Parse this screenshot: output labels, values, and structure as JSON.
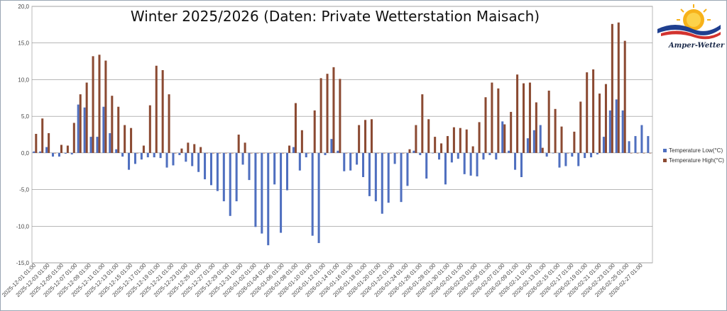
{
  "chart_data": {
    "type": "bar",
    "title": "Winter 2025/2026 (Daten: Private Wetterstation Maisach)",
    "xlabel": "",
    "ylabel": "",
    "ylim": [
      -15,
      20
    ],
    "yticks": [
      "20,0",
      "15,0",
      "10,0",
      "5,0",
      "0,0",
      "-5,0",
      "-10,0",
      "-15,0"
    ],
    "grid": true,
    "legend_position": "right",
    "colors": {
      "low": "#4f6fbf",
      "high": "#8b4a32"
    },
    "x_tick_labels": [
      "2025-12-01 01:00",
      "2025-12-03 01:00",
      "2025-12-05 01:00",
      "2025-12-07 01:00",
      "2025-12-09 01:00",
      "2025-12-11 01:00",
      "2025-12-13 01:00",
      "2025-12-15 01:00",
      "2025-12-17 01:00",
      "2025-12-19 01:00",
      "2025-12-21 01:00",
      "2025-12-23 01:00",
      "2025-12-25 01:00",
      "2025-12-27 01:00",
      "2025-12-29 01:00",
      "2025-12-31 01:00",
      "2026-01-02 01:00",
      "2026-01-04 01:00",
      "2026-01-06 01:00",
      "2026-01-08 01:00",
      "2026-01-10 01:00",
      "2026-01-12 01:00",
      "2026-01-14 01:00",
      "2026-01-16 01:00",
      "2026-01-18 01:00",
      "2026-01-20 01:00",
      "2026-01-22 01:00",
      "2026-01-24 01:00",
      "2026-01-26 01:00",
      "2026-01-28 01:00",
      "2026-01-30 01:00",
      "2026-02-01 01:00",
      "2026-02-03 01:00",
      "2026-02-05 01:00",
      "2026-02-07 01:00",
      "2026-02-09 01:00",
      "2026-02-11 01:00",
      "2026-02-13 01:00",
      "2026-02-15 01:00",
      "2026-02-17 01:00",
      "2026-02-19 01:00",
      "2026-02-21 01:00",
      "2026-02-23 01:00",
      "2026-02-25 01:00",
      "2026-02-27 01:00"
    ],
    "series": [
      {
        "name": "Temperature Low(°C)",
        "color": "#4f6fbf",
        "values": [
          0.2,
          0.2,
          0.8,
          -0.5,
          -0.5,
          -0.1,
          -0.2,
          6.6,
          6.2,
          2.2,
          2.2,
          6.3,
          2.7,
          0.5,
          -0.5,
          -2.3,
          -1.5,
          -0.9,
          -0.6,
          -0.6,
          -0.7,
          -2.0,
          -1.7,
          -0.3,
          -1.2,
          -1.8,
          -2.6,
          -3.6,
          -4.4,
          -5.2,
          -6.6,
          -8.6,
          -6.6,
          -1.6,
          -3.7,
          -10.1,
          -11.0,
          -12.6,
          -4.3,
          -10.9,
          -5.1,
          0.8,
          -2.4,
          -0.6,
          -11.3,
          -12.3,
          -0.3,
          1.9,
          0.3,
          -2.5,
          -2.4,
          -1.6,
          -3.3,
          -5.9,
          -6.6,
          -8.3,
          -6.8,
          -1.5,
          -6.7,
          -4.5,
          0.3,
          -0.3,
          -3.5,
          0.0,
          -0.9,
          -4.3,
          -1.3,
          -0.8,
          -2.9,
          -3.1,
          -3.2,
          -0.9,
          -0.3,
          -0.9,
          4.3,
          0.3,
          -2.3,
          -3.3,
          2.0,
          3.1,
          3.8,
          -0.5,
          0.0,
          -2.0,
          -1.8,
          -0.5,
          -1.8,
          -0.7,
          -0.6,
          -0.2,
          2.2,
          5.8,
          7.3,
          5.8,
          1.6,
          2.3,
          3.8,
          2.3
        ]
      },
      {
        "name": "Temperature High(°C)",
        "color": "#8b4a32",
        "values": [
          2.6,
          4.7,
          2.7,
          0.0,
          1.1,
          1.0,
          4.1,
          8.0,
          9.6,
          13.2,
          13.4,
          12.6,
          7.8,
          6.3,
          3.8,
          3.4,
          0.0,
          1.0,
          6.5,
          11.9,
          11.3,
          8.0,
          0.0,
          0.6,
          1.4,
          1.2,
          0.8,
          0.0,
          0.0,
          0.0,
          0.0,
          0.0,
          2.5,
          1.4,
          0.0,
          0.0,
          0.0,
          0.0,
          0.0,
          0.0,
          1.0,
          6.8,
          3.1,
          0.0,
          5.8,
          10.2,
          10.8,
          11.7,
          10.1,
          0.0,
          0.0,
          3.8,
          4.5,
          4.6,
          0.0,
          0.0,
          0.0,
          0.0,
          0.0,
          0.5,
          3.8,
          8.0,
          4.6,
          2.2,
          1.3,
          2.3,
          3.5,
          3.4,
          3.2,
          0.9,
          4.2,
          7.6,
          9.6,
          8.8,
          3.9,
          5.6,
          10.7,
          9.5,
          9.6,
          6.9,
          0.7,
          8.5,
          6.0,
          3.6,
          0.0,
          2.9,
          7.0,
          11.0,
          11.4,
          8.1,
          9.4,
          17.6,
          17.8,
          15.3,
          0.0,
          0.0,
          0.0,
          0.0
        ]
      }
    ]
  },
  "logo": {
    "text": "Amper-Wetter"
  }
}
